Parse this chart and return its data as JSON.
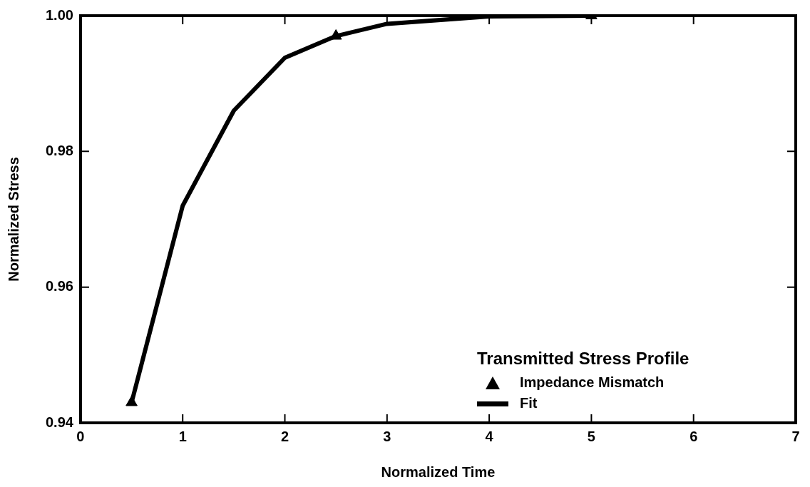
{
  "chart_data": {
    "type": "line",
    "xlabel": "Normalized Time",
    "ylabel": "Normalized Stress",
    "legend_title": "Transmitted Stress Profile",
    "xlim": [
      0,
      7
    ],
    "xticks": [
      0,
      1,
      2,
      3,
      4,
      5,
      6,
      7
    ],
    "ylim": [
      0.94,
      1.0
    ],
    "yticks": [
      0.94,
      0.96,
      0.98,
      {
        "value": 1.0,
        "label": "1.00"
      }
    ],
    "grid": false,
    "legend": "bottom right",
    "series": [
      {
        "name": "Impedance Mismatch",
        "type": "scatter",
        "marker": "triangle",
        "color": "#000000",
        "x": [
          0.5,
          2.5,
          5
        ],
        "values": [
          0.943,
          0.997,
          1.0
        ]
      },
      {
        "name": "Fit",
        "type": "line",
        "marker": "none",
        "line_style": "solid",
        "color": "#000000",
        "x": [
          0.5,
          1,
          1.5,
          2,
          2.5,
          3,
          4,
          5
        ],
        "values": [
          0.943,
          0.972,
          0.986,
          0.9938,
          0.997,
          0.9988,
          0.9999,
          1.0
        ]
      }
    ]
  }
}
